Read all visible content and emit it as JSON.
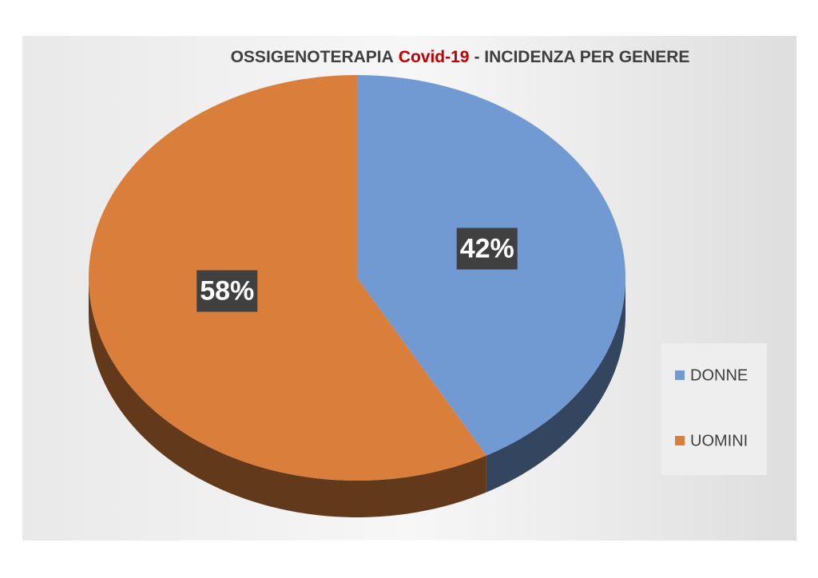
{
  "chart_data": {
    "type": "pie",
    "title": [
      "OSSIGENOTERAPIA",
      "Covid-19",
      "- INCIDENZA PER GENERE"
    ],
    "title_colors": [
      "#404040",
      "#c00000",
      "#404040"
    ],
    "categories": [
      "DONNE",
      "UOMINI"
    ],
    "values": [
      42,
      58
    ],
    "value_labels": [
      "42%",
      "58%"
    ],
    "colors": [
      "#7199d2",
      "#d97e3b"
    ],
    "legend": "right"
  }
}
